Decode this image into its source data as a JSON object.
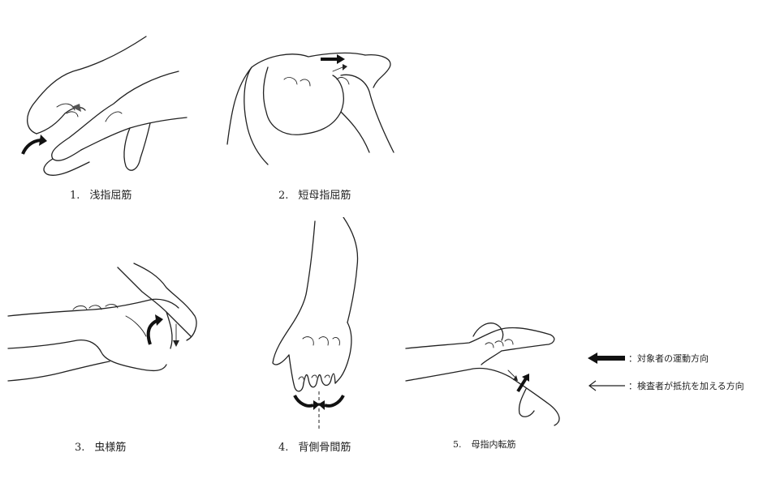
{
  "figures": [
    {
      "number": "1.",
      "label": "浅指屈筋"
    },
    {
      "number": "2.",
      "label": "短母指屈筋"
    },
    {
      "number": "3.",
      "label": "虫様筋"
    },
    {
      "number": "4.",
      "label": "背側骨間筋"
    },
    {
      "number": "5.",
      "label": "母指内転筋"
    }
  ],
  "legend": {
    "subject_motion": "：対象者の運動方向",
    "examiner_resistance": "：検査者が抵抗を加える方向"
  },
  "colors": {
    "ink": "#222222",
    "background": "#ffffff"
  }
}
